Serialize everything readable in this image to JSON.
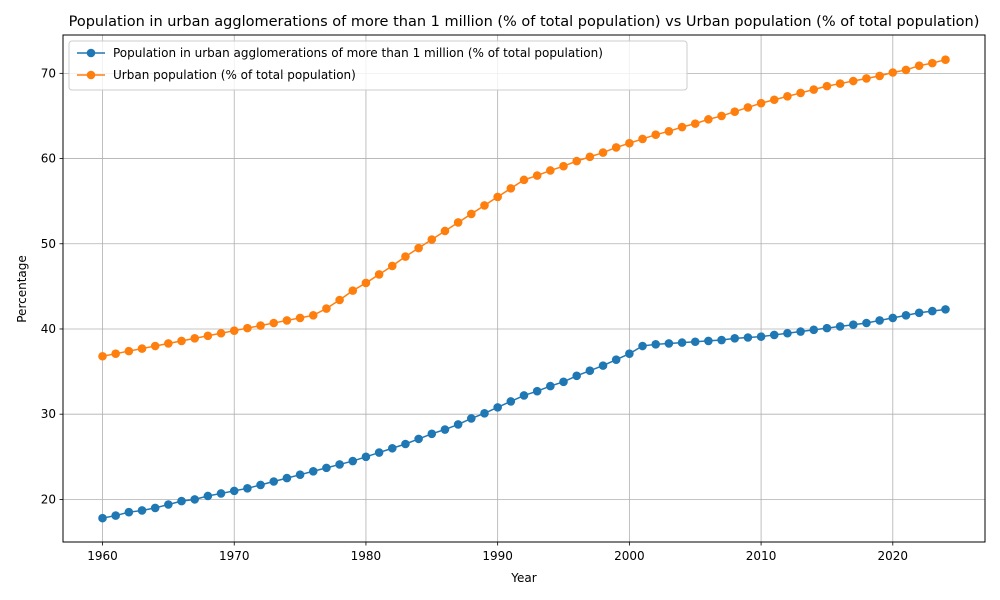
{
  "chart_data": {
    "type": "line",
    "title": "Population in urban agglomerations of more than 1 million (% of total population) vs Urban population (% of total population)",
    "xlabel": "Year",
    "ylabel": "Percentage",
    "xlim": [
      1957,
      2027
    ],
    "ylim": [
      15,
      74.5
    ],
    "xticks": [
      1960,
      1970,
      1980,
      1990,
      2000,
      2010,
      2020
    ],
    "yticks": [
      20,
      30,
      40,
      50,
      60,
      70
    ],
    "grid": true,
    "legend_position": "top-left",
    "x": [
      1960,
      1961,
      1962,
      1963,
      1964,
      1965,
      1966,
      1967,
      1968,
      1969,
      1970,
      1971,
      1972,
      1973,
      1974,
      1975,
      1976,
      1977,
      1978,
      1979,
      1980,
      1981,
      1982,
      1983,
      1984,
      1985,
      1986,
      1987,
      1988,
      1989,
      1990,
      1991,
      1992,
      1993,
      1994,
      1995,
      1996,
      1997,
      1998,
      1999,
      2000,
      2001,
      2002,
      2003,
      2004,
      2005,
      2006,
      2007,
      2008,
      2009,
      2010,
      2011,
      2012,
      2013,
      2014,
      2015,
      2016,
      2017,
      2018,
      2019,
      2020,
      2021,
      2022,
      2023,
      2024
    ],
    "series": [
      {
        "name": "Population in urban agglomerations of more than 1 million (% of total population)",
        "color": "#1f77b4",
        "values": [
          17.8,
          18.1,
          18.5,
          18.7,
          19.0,
          19.4,
          19.8,
          20.0,
          20.4,
          20.7,
          21.0,
          21.3,
          21.7,
          22.1,
          22.5,
          22.9,
          23.3,
          23.7,
          24.1,
          24.5,
          25.0,
          25.5,
          26.0,
          26.5,
          27.1,
          27.7,
          28.2,
          28.8,
          29.5,
          30.1,
          30.8,
          31.5,
          32.2,
          32.7,
          33.3,
          33.8,
          34.5,
          35.1,
          35.7,
          36.4,
          37.1,
          38.0,
          38.2,
          38.3,
          38.4,
          38.5,
          38.6,
          38.7,
          38.9,
          39.0,
          39.1,
          39.3,
          39.5,
          39.7,
          39.9,
          40.1,
          40.3,
          40.5,
          40.7,
          41.0,
          41.3,
          41.6,
          41.9,
          42.1,
          42.3
        ]
      },
      {
        "name": "Urban population (% of total population)",
        "color": "#ff7f0e",
        "values": [
          36.8,
          37.1,
          37.4,
          37.7,
          38.0,
          38.3,
          38.6,
          38.9,
          39.2,
          39.5,
          39.8,
          40.1,
          40.4,
          40.7,
          41.0,
          41.3,
          41.6,
          42.4,
          43.4,
          44.5,
          45.4,
          46.4,
          47.4,
          48.5,
          49.5,
          50.5,
          51.5,
          52.5,
          53.5,
          54.5,
          55.5,
          56.5,
          57.5,
          58.0,
          58.6,
          59.1,
          59.7,
          60.2,
          60.7,
          61.3,
          61.8,
          62.3,
          62.8,
          63.2,
          63.7,
          64.1,
          64.6,
          65.0,
          65.5,
          66.0,
          66.5,
          66.9,
          67.3,
          67.7,
          68.1,
          68.5,
          68.8,
          69.1,
          69.4,
          69.7,
          70.1,
          70.4,
          70.9,
          71.2,
          71.6
        ]
      }
    ]
  }
}
